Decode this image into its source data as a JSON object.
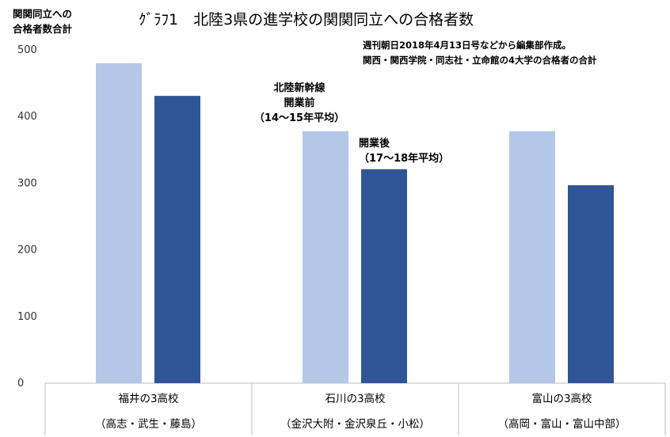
{
  "chart_data": {
    "type": "bar",
    "title": "ｸﾞﾗﾌ1　北陸3県の進学校の関関同立への合格者数",
    "ylabel": "関関同立への\n合格者数合計",
    "note": "週刊朝日2018年4月13日号などから編集部作成。\n関西・関西学院・同志社・立命館の4大学の合格者の合計",
    "ylim": [
      0,
      500
    ],
    "yticks": [
      0,
      100,
      200,
      300,
      400,
      500
    ],
    "grid": false,
    "categories": [
      "福井の3高校",
      "石川の3高校",
      "富山の3高校"
    ],
    "category_sublabels": [
      "（高志・武生・藤島）",
      "（金沢大附・金沢泉丘・小松）",
      "（高岡・富山・富山中部）"
    ],
    "series": [
      {
        "name": "北陸新幹線\n開業前\n（14～15年平均）",
        "color": "#b4c7e7",
        "values": [
          480,
          378,
          378
        ]
      },
      {
        "name": "開業後\n（17～18年平均）",
        "color": "#2f5597",
        "values": [
          431,
          321,
          297
        ]
      }
    ]
  }
}
